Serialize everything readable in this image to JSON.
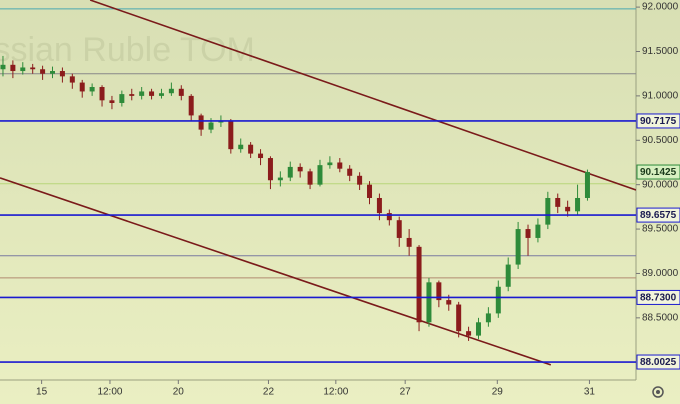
{
  "chart_data": {
    "type": "candlestick",
    "title": "Russian Ruble TOM",
    "x": [
      0,
      1,
      2,
      3,
      4,
      5,
      6,
      7,
      8,
      9,
      10,
      11,
      12,
      13,
      14,
      15,
      16,
      17,
      18,
      19,
      20,
      21,
      22,
      23,
      24,
      25,
      26,
      27,
      28,
      29,
      30,
      31,
      32,
      33,
      34,
      35,
      36,
      37,
      38,
      39,
      40,
      41,
      42,
      43,
      44,
      45,
      46,
      47,
      48,
      49,
      50,
      51,
      52,
      53,
      54,
      55,
      56,
      57,
      58,
      59
    ],
    "open": [
      91.3,
      91.35,
      91.28,
      91.32,
      91.3,
      91.25,
      91.28,
      91.22,
      91.15,
      91.05,
      91.1,
      90.95,
      90.92,
      91.02,
      91.0,
      91.05,
      91.0,
      91.03,
      91.08,
      91.0,
      90.78,
      90.62,
      90.7,
      90.72,
      90.4,
      90.45,
      90.35,
      90.3,
      90.05,
      90.08,
      90.2,
      90.15,
      90.0,
      90.22,
      90.25,
      90.18,
      90.1,
      90.0,
      89.85,
      89.68,
      89.6,
      89.4,
      89.3,
      88.45,
      88.9,
      88.7,
      88.65,
      88.35,
      88.3,
      88.45,
      88.55,
      88.85,
      89.1,
      89.5,
      89.4,
      89.55,
      89.85,
      89.75,
      89.7,
      89.85
    ],
    "high": [
      91.45,
      91.4,
      91.38,
      91.36,
      91.34,
      91.33,
      91.32,
      91.25,
      91.18,
      91.14,
      91.12,
      91.0,
      91.06,
      91.08,
      91.1,
      91.08,
      91.08,
      91.15,
      91.12,
      91.02,
      90.8,
      90.75,
      90.78,
      90.74,
      90.52,
      90.48,
      90.4,
      90.32,
      90.15,
      90.26,
      90.24,
      90.18,
      90.28,
      90.32,
      90.3,
      90.22,
      90.14,
      90.04,
      89.9,
      89.72,
      89.64,
      89.5,
      89.32,
      88.95,
      88.92,
      88.76,
      88.68,
      88.4,
      88.5,
      88.62,
      88.92,
      89.18,
      89.58,
      89.55,
      89.62,
      89.92,
      89.9,
      89.82,
      90.0,
      90.17
    ],
    "low": [
      91.22,
      91.2,
      91.24,
      91.25,
      91.18,
      91.2,
      91.15,
      91.08,
      90.98,
      91.0,
      90.88,
      90.85,
      90.88,
      90.95,
      90.96,
      90.96,
      90.97,
      91.0,
      90.95,
      90.72,
      90.55,
      90.58,
      90.65,
      90.35,
      90.36,
      90.3,
      90.22,
      89.95,
      89.98,
      90.04,
      90.08,
      89.95,
      89.98,
      90.18,
      90.14,
      90.04,
      89.94,
      89.78,
      89.6,
      89.54,
      89.3,
      89.2,
      88.35,
      88.4,
      88.62,
      88.58,
      88.28,
      88.24,
      88.26,
      88.4,
      88.5,
      88.8,
      89.05,
      89.2,
      89.35,
      89.5,
      89.68,
      89.64,
      89.66,
      89.82
    ],
    "close": [
      91.35,
      91.28,
      91.32,
      91.3,
      91.25,
      91.28,
      91.22,
      91.15,
      91.05,
      91.1,
      90.95,
      90.92,
      91.02,
      91.0,
      91.05,
      91.0,
      91.03,
      91.08,
      91.0,
      90.78,
      90.62,
      90.7,
      90.72,
      90.4,
      90.45,
      90.35,
      90.3,
      90.05,
      90.08,
      90.2,
      90.15,
      90.0,
      90.22,
      90.25,
      90.18,
      90.1,
      90.0,
      89.85,
      89.68,
      89.6,
      89.4,
      89.3,
      88.45,
      88.9,
      88.7,
      88.65,
      88.35,
      88.3,
      88.45,
      88.55,
      88.85,
      89.1,
      89.5,
      89.4,
      89.55,
      89.85,
      89.75,
      89.7,
      89.85,
      90.1425
    ],
    "up_color": "#2e8b3a",
    "down_color": "#8b1c1c",
    "xlim": [
      -0.3,
      63.9
    ],
    "ylim": [
      87.8,
      92.08
    ],
    "xticks": [
      {
        "value": 3.9,
        "label": "15"
      },
      {
        "value": 10.8,
        "label": "12:00"
      },
      {
        "value": 17.7,
        "label": "20"
      },
      {
        "value": 26.8,
        "label": "22"
      },
      {
        "value": 33.6,
        "label": "12:00"
      },
      {
        "value": 40.6,
        "label": "27"
      },
      {
        "value": 49.9,
        "label": "29"
      },
      {
        "value": 59.2,
        "label": "31"
      }
    ],
    "yticks": [
      {
        "value": 92,
        "label": "92.0000"
      },
      {
        "value": 91.5,
        "label": "91.5000"
      },
      {
        "value": 91,
        "label": "91.0000"
      },
      {
        "value": 90.5,
        "label": "90.5000"
      },
      {
        "value": 90,
        "label": "90.0000"
      },
      {
        "value": 89.5,
        "label": "89.5000"
      },
      {
        "value": 89,
        "label": "89.0000"
      },
      {
        "value": 88.5,
        "label": "88.5000"
      }
    ],
    "levels": [
      90.7175,
      89.6575,
      {
        "value": 88.73,
        "label": "88.7300"
      },
      88.0025
    ],
    "level_color": "#1a1ad0",
    "last_price": 90.1425,
    "last_color": "#2e8b3a",
    "hlines": [
      {
        "value": 91.98,
        "color": "#4aa8b0"
      },
      {
        "value": 91.25,
        "color": "#888888"
      },
      {
        "value": 90.01,
        "color": "#b7d67a"
      },
      {
        "value": 89.2,
        "color": "#7a7aa0"
      },
      {
        "value": 88.95,
        "color": "#b08a70"
      }
    ],
    "trendlines": [
      {
        "x": [
          8.8,
          63.9
        ],
        "y": [
          92.08,
          89.94
        ],
        "color": "#7a1a1a"
      },
      {
        "x": [
          -0.3,
          55.3
        ],
        "y": [
          90.076,
          87.97
        ],
        "color": "#7a1a1a"
      }
    ]
  }
}
